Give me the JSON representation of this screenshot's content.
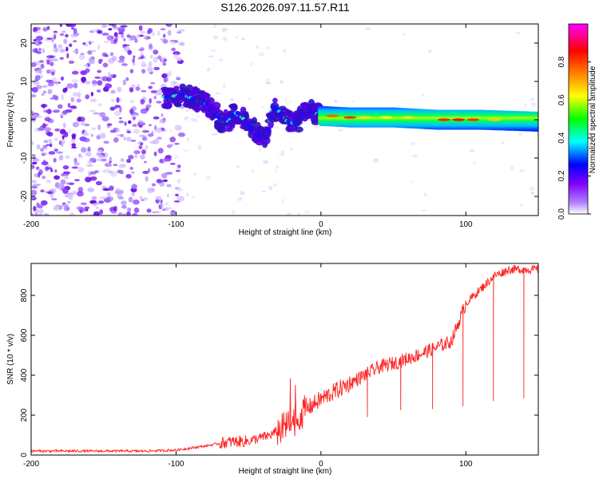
{
  "figure": {
    "title": "S126.2026.097.11.57.R11"
  },
  "chart_data": [
    {
      "type": "heatmap",
      "title": "S126.2026.097.11.57.R11",
      "xlabel": "Height of straight line (km)",
      "ylabel": "Frequency (Hz)",
      "xlim": [
        -200,
        150
      ],
      "ylim": [
        -25,
        25
      ],
      "xticks": [
        -200,
        -100,
        0,
        100
      ],
      "yticks": [
        -20,
        -10,
        0,
        10,
        20
      ],
      "colorbar": {
        "label": "Normalized spectral amplitude",
        "range": [
          0,
          1
        ],
        "ticks": [
          0.0,
          0.2,
          0.4,
          0.6,
          0.8
        ],
        "tick_labels": [
          "0.0",
          "0.2",
          "0.4",
          "0.6",
          "0.8"
        ],
        "colors": [
          "#ffffff",
          "#8000ff",
          "#0000ff",
          "#00ffff",
          "#00ff00",
          "#ffff00",
          "#ff8000",
          "#ff0000",
          "#ff00ff"
        ]
      },
      "ridge": [
        {
          "x": -105,
          "y": 6
        },
        {
          "x": -95,
          "y": 6.5
        },
        {
          "x": -85,
          "y": 5
        },
        {
          "x": -78,
          "y": 4
        },
        {
          "x": -72,
          "y": 1
        },
        {
          "x": -65,
          "y": -1
        },
        {
          "x": -58,
          "y": 2
        },
        {
          "x": -50,
          "y": -1
        },
        {
          "x": -44,
          "y": -4
        },
        {
          "x": -38,
          "y": -5
        },
        {
          "x": -33,
          "y": 3.5
        },
        {
          "x": -28,
          "y": 2
        },
        {
          "x": -22,
          "y": -1
        },
        {
          "x": -16,
          "y": -0.5
        },
        {
          "x": -10,
          "y": 2.5
        },
        {
          "x": -5,
          "y": 2
        },
        {
          "x": 0,
          "y": 1
        },
        {
          "x": 20,
          "y": 0.6
        },
        {
          "x": 50,
          "y": 0.6
        },
        {
          "x": 80,
          "y": 0
        },
        {
          "x": 110,
          "y": 0
        },
        {
          "x": 150,
          "y": -0.5
        }
      ]
    },
    {
      "type": "line",
      "xlabel": "Height of straight line (km)",
      "ylabel": "SNR (10 * v/v)",
      "xlim": [
        -200,
        150
      ],
      "ylim": [
        0,
        960
      ],
      "xticks": [
        -200,
        -100,
        0,
        100
      ],
      "yticks": [
        0,
        200,
        400,
        600,
        800
      ],
      "color": "#ff0000",
      "trend": [
        {
          "x": -200,
          "y": 20
        },
        {
          "x": -120,
          "y": 20
        },
        {
          "x": -100,
          "y": 25
        },
        {
          "x": -80,
          "y": 45
        },
        {
          "x": -65,
          "y": 65
        },
        {
          "x": -50,
          "y": 70
        },
        {
          "x": -35,
          "y": 100
        },
        {
          "x": -20,
          "y": 160
        },
        {
          "x": -10,
          "y": 230
        },
        {
          "x": 0,
          "y": 280
        },
        {
          "x": 20,
          "y": 360
        },
        {
          "x": 40,
          "y": 440
        },
        {
          "x": 55,
          "y": 470
        },
        {
          "x": 70,
          "y": 510
        },
        {
          "x": 90,
          "y": 570
        },
        {
          "x": 100,
          "y": 760
        },
        {
          "x": 110,
          "y": 830
        },
        {
          "x": 120,
          "y": 900
        },
        {
          "x": 130,
          "y": 930
        },
        {
          "x": 150,
          "y": 930
        }
      ],
      "dips": [
        {
          "x": 32,
          "y": 190
        },
        {
          "x": 55,
          "y": 225
        },
        {
          "x": 77,
          "y": 230
        },
        {
          "x": 98,
          "y": 245
        },
        {
          "x": 119,
          "y": 270
        },
        {
          "x": 140,
          "y": 285
        }
      ]
    }
  ]
}
